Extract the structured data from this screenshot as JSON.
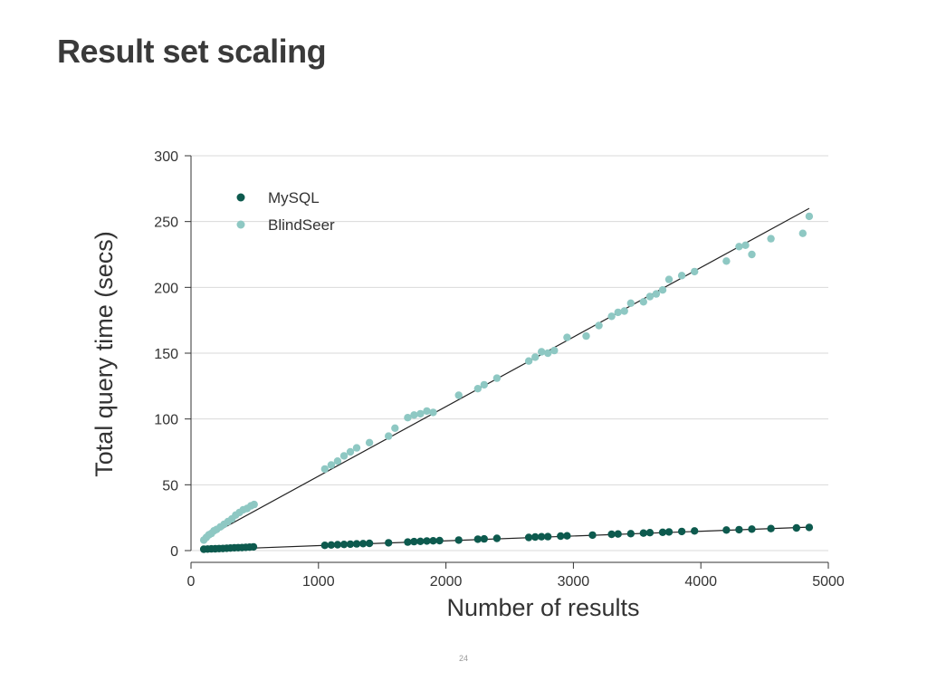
{
  "slide": {
    "title": "Result set scaling",
    "page_number": "24"
  },
  "colors": {
    "mysql": "#0d5a4e",
    "blindseer": "#8ec8c3",
    "fit_line": "#222222",
    "grid": "#d9d9d9",
    "axis": "#333333",
    "title": "#3a3a3a"
  },
  "chart_data": {
    "type": "scatter",
    "xlabel": "Number of results",
    "ylabel": "Total query time (secs)",
    "xlim": [
      0,
      5000
    ],
    "ylim": [
      0,
      300
    ],
    "xticks": [
      0,
      1000,
      2000,
      3000,
      4000,
      5000
    ],
    "yticks": [
      0,
      50,
      100,
      150,
      200,
      250,
      300
    ],
    "grid": "horizontal",
    "legend_position": "top-left",
    "series": [
      {
        "name": "MySQL",
        "color": "#0d5a4e",
        "points": [
          [
            100,
            1.0
          ],
          [
            130,
            1.2
          ],
          [
            160,
            1.3
          ],
          [
            190,
            1.4
          ],
          [
            220,
            1.5
          ],
          [
            250,
            1.6
          ],
          [
            280,
            1.8
          ],
          [
            310,
            1.9
          ],
          [
            340,
            2.1
          ],
          [
            370,
            2.2
          ],
          [
            400,
            2.3
          ],
          [
            430,
            2.5
          ],
          [
            460,
            2.6
          ],
          [
            490,
            2.8
          ],
          [
            1050,
            4.0
          ],
          [
            1100,
            4.3
          ],
          [
            1150,
            4.5
          ],
          [
            1200,
            4.7
          ],
          [
            1250,
            4.9
          ],
          [
            1300,
            5.1
          ],
          [
            1350,
            5.3
          ],
          [
            1400,
            5.5
          ],
          [
            1550,
            5.9
          ],
          [
            1700,
            6.5
          ],
          [
            1750,
            6.8
          ],
          [
            1800,
            7.0
          ],
          [
            1850,
            7.3
          ],
          [
            1900,
            7.4
          ],
          [
            1950,
            7.6
          ],
          [
            2100,
            8.0
          ],
          [
            2250,
            8.7
          ],
          [
            2300,
            8.9
          ],
          [
            2400,
            9.3
          ],
          [
            2650,
            10.0
          ],
          [
            2700,
            10.3
          ],
          [
            2750,
            10.5
          ],
          [
            2800,
            10.6
          ],
          [
            2900,
            11.0
          ],
          [
            2950,
            11.2
          ],
          [
            3150,
            11.8
          ],
          [
            3300,
            12.4
          ],
          [
            3350,
            12.6
          ],
          [
            3450,
            12.9
          ],
          [
            3550,
            13.3
          ],
          [
            3600,
            13.6
          ],
          [
            3700,
            13.9
          ],
          [
            3750,
            14.2
          ],
          [
            3850,
            14.5
          ],
          [
            3950,
            14.9
          ],
          [
            4200,
            15.6
          ],
          [
            4300,
            15.9
          ],
          [
            4400,
            16.3
          ],
          [
            4550,
            16.7
          ],
          [
            4750,
            17.2
          ],
          [
            4850,
            17.6
          ]
        ],
        "fit": [
          [
            100,
            0.5
          ],
          [
            4850,
            17.8
          ]
        ]
      },
      {
        "name": "BlindSeer",
        "color": "#8ec8c3",
        "points": [
          [
            100,
            8
          ],
          [
            120,
            10
          ],
          [
            140,
            12
          ],
          [
            160,
            13
          ],
          [
            180,
            15
          ],
          [
            200,
            16
          ],
          [
            230,
            18
          ],
          [
            260,
            20
          ],
          [
            290,
            22
          ],
          [
            320,
            24
          ],
          [
            350,
            27
          ],
          [
            380,
            29
          ],
          [
            410,
            31
          ],
          [
            440,
            32
          ],
          [
            470,
            34
          ],
          [
            495,
            35
          ],
          [
            1050,
            62
          ],
          [
            1100,
            65
          ],
          [
            1150,
            68
          ],
          [
            1200,
            72
          ],
          [
            1250,
            75
          ],
          [
            1300,
            78
          ],
          [
            1400,
            82
          ],
          [
            1550,
            87
          ],
          [
            1600,
            93
          ],
          [
            1700,
            101
          ],
          [
            1750,
            103
          ],
          [
            1800,
            104
          ],
          [
            1850,
            106
          ],
          [
            1900,
            105
          ],
          [
            2100,
            118
          ],
          [
            2250,
            123
          ],
          [
            2300,
            126
          ],
          [
            2400,
            131
          ],
          [
            2650,
            144
          ],
          [
            2700,
            147
          ],
          [
            2750,
            151
          ],
          [
            2800,
            150
          ],
          [
            2850,
            152
          ],
          [
            2950,
            162
          ],
          [
            3100,
            163
          ],
          [
            3200,
            171
          ],
          [
            3300,
            178
          ],
          [
            3350,
            181
          ],
          [
            3400,
            182
          ],
          [
            3450,
            188
          ],
          [
            3550,
            189
          ],
          [
            3600,
            193
          ],
          [
            3650,
            195
          ],
          [
            3700,
            198
          ],
          [
            3750,
            206
          ],
          [
            3850,
            209
          ],
          [
            3950,
            212
          ],
          [
            4200,
            220
          ],
          [
            4300,
            231
          ],
          [
            4350,
            232
          ],
          [
            4400,
            225
          ],
          [
            4550,
            237
          ],
          [
            4800,
            241
          ],
          [
            4850,
            254
          ]
        ],
        "fit": [
          [
            100,
            9
          ],
          [
            4850,
            260
          ]
        ]
      }
    ]
  }
}
